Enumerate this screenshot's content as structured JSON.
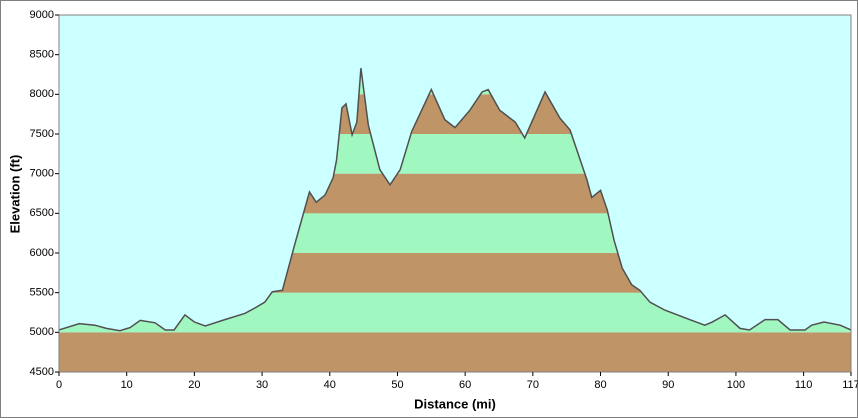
{
  "chart_data": {
    "type": "area",
    "x_label": "Distance (mi)",
    "y_label": "Elevation (ft)",
    "x": [
      0,
      3,
      5.3,
      7,
      9,
      10.5,
      12,
      14.2,
      15.7,
      17,
      18.6,
      20,
      21.6,
      24.5,
      27.5,
      29,
      30.4,
      31.5,
      33,
      34.8,
      37,
      38,
      39.3,
      40.5,
      41,
      41.8,
      42.4,
      43.3,
      44,
      44.6,
      45.7,
      47.4,
      48.9,
      50.4,
      52.1,
      55,
      57,
      58.5,
      60.7,
      62.5,
      63.4,
      65.1,
      67.4,
      68.8,
      71.8,
      74,
      75.5,
      78,
      78.7,
      80,
      81,
      82,
      83.2,
      84.6,
      85.8,
      87.3,
      89.5,
      93.2,
      95.4,
      96.5,
      98.4,
      100.6,
      102,
      104.3,
      106.2,
      108,
      110.2,
      111.2,
      113,
      115.4,
      117
    ],
    "values": [
      5030,
      5110,
      5090,
      5050,
      5020,
      5060,
      5150,
      5120,
      5030,
      5030,
      5220,
      5130,
      5080,
      5160,
      5240,
      5310,
      5380,
      5510,
      5530,
      6100,
      6770,
      6640,
      6730,
      6950,
      7170,
      7830,
      7880,
      7490,
      7650,
      8330,
      7610,
      7050,
      6860,
      7050,
      7530,
      8060,
      7680,
      7580,
      7800,
      8030,
      8060,
      7800,
      7650,
      7450,
      8030,
      7700,
      7550,
      6920,
      6700,
      6790,
      6540,
      6160,
      5810,
      5600,
      5530,
      5380,
      5280,
      5160,
      5090,
      5130,
      5220,
      5050,
      5030,
      5160,
      5160,
      5030,
      5030,
      5090,
      5130,
      5090,
      5030
    ],
    "xlim": [
      0,
      117
    ],
    "ylim": [
      4500,
      9000
    ],
    "xticks": [
      0,
      10,
      20,
      30,
      40,
      50,
      60,
      70,
      80,
      90,
      100,
      110,
      117
    ],
    "yticks": [
      4500,
      5000,
      5500,
      6000,
      6500,
      7000,
      7500,
      8000,
      8500,
      9000
    ],
    "band_colors": [
      "#bf9567",
      "#a0f7c0"
    ],
    "line_color": "#505050",
    "background": "#ccffff"
  }
}
